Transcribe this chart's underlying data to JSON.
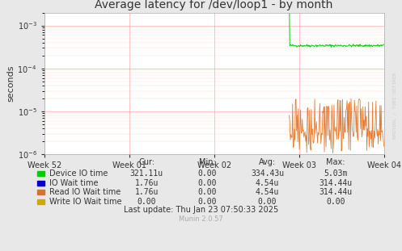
{
  "title": "Average latency for /dev/loop1 - by month",
  "ylabel": "seconds",
  "background_color": "#e8e8e8",
  "plot_bg_color": "#ffffff",
  "grid_color": "#ff9999",
  "x_labels": [
    "Week 52",
    "Week 01",
    "Week 02",
    "Week 03",
    "Week 04"
  ],
  "legend_entries": [
    {
      "label": "Device IO time",
      "color": "#00cc00"
    },
    {
      "label": "IO Wait time",
      "color": "#0000cc"
    },
    {
      "label": "Read IO Wait time",
      "color": "#e07020"
    },
    {
      "label": "Write IO Wait time",
      "color": "#ccaa00"
    }
  ],
  "table_headers": [
    "Cur:",
    "Min:",
    "Avg:",
    "Max:"
  ],
  "table_rows": [
    [
      "321.11u",
      "0.00",
      "334.43u",
      "5.03m"
    ],
    [
      "1.76u",
      "0.00",
      "4.54u",
      "314.44u"
    ],
    [
      "1.76u",
      "0.00",
      "4.54u",
      "314.44u"
    ],
    [
      "0.00",
      "0.00",
      "0.00",
      "0.00"
    ]
  ],
  "footer": "Last update: Thu Jan 23 07:50:33 2025",
  "munin_version": "Munin 2.0.57",
  "watermark": "RRDTOOL / TOBI OETIKER"
}
